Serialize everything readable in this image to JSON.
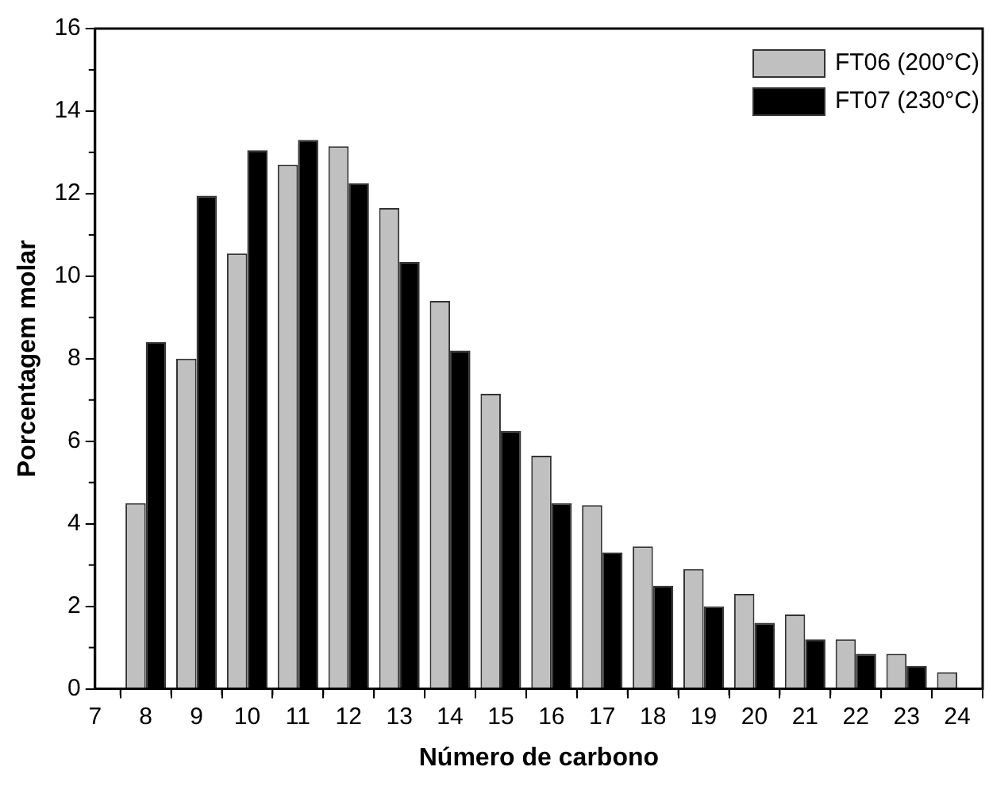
{
  "chart_data": {
    "type": "bar",
    "xlabel": "Número de carbono",
    "ylabel": "Porcentagem molar",
    "x": [
      8,
      9,
      10,
      11,
      12,
      13,
      14,
      15,
      16,
      17,
      18,
      19,
      20,
      21,
      22,
      23,
      24
    ],
    "series": [
      {
        "name": "FT06 (200°C)",
        "color": "#c0c0c0",
        "values": [
          4.5,
          8.0,
          10.55,
          12.7,
          13.15,
          11.65,
          9.4,
          7.15,
          5.65,
          4.45,
          3.45,
          2.9,
          2.3,
          1.8,
          1.2,
          0.85,
          0.4
        ]
      },
      {
        "name": "FT07 (230°C)",
        "color": "#000000",
        "values": [
          8.4,
          11.95,
          13.05,
          13.3,
          12.25,
          10.35,
          8.2,
          6.25,
          4.5,
          3.3,
          2.5,
          2.0,
          1.6,
          1.2,
          0.85,
          0.55,
          null
        ]
      }
    ],
    "xlim": [
      7,
      24.5
    ],
    "xticks": [
      7,
      {
        "value": 7.5,
        "label": null
      },
      8,
      {
        "value": 8.5,
        "label": null
      },
      9,
      {
        "value": 9.5,
        "label": null
      },
      10,
      {
        "value": 10.5,
        "label": null
      },
      11,
      {
        "value": 11.5,
        "label": null
      },
      12,
      {
        "value": 12.5,
        "label": null
      },
      13,
      {
        "value": 13.5,
        "label": null
      },
      14,
      {
        "value": 14.5,
        "label": null
      },
      15,
      {
        "value": 15.5,
        "label": null
      },
      16,
      {
        "value": 16.5,
        "label": null
      },
      17,
      {
        "value": 17.5,
        "label": null
      },
      18,
      {
        "value": 18.5,
        "label": null
      },
      19,
      {
        "value": 19.5,
        "label": null
      },
      20,
      {
        "value": 20.5,
        "label": null
      },
      21,
      {
        "value": 21.5,
        "label": null
      },
      22,
      {
        "value": 22.5,
        "label": null
      },
      23,
      {
        "value": 23.5,
        "label": null
      },
      24
    ],
    "ylim": [
      0,
      16
    ],
    "yticks": [
      0,
      {
        "value": 1,
        "label": null
      },
      2,
      {
        "value": 3,
        "label": null
      },
      4,
      {
        "value": 5,
        "label": null
      },
      6,
      {
        "value": 7,
        "label": null
      },
      8,
      {
        "value": 9,
        "label": null
      },
      10,
      {
        "value": 11,
        "label": null
      },
      12,
      {
        "value": 13,
        "label": null
      },
      14,
      {
        "value": 15,
        "label": null
      },
      16
    ],
    "legend": "top right",
    "grid": false
  }
}
